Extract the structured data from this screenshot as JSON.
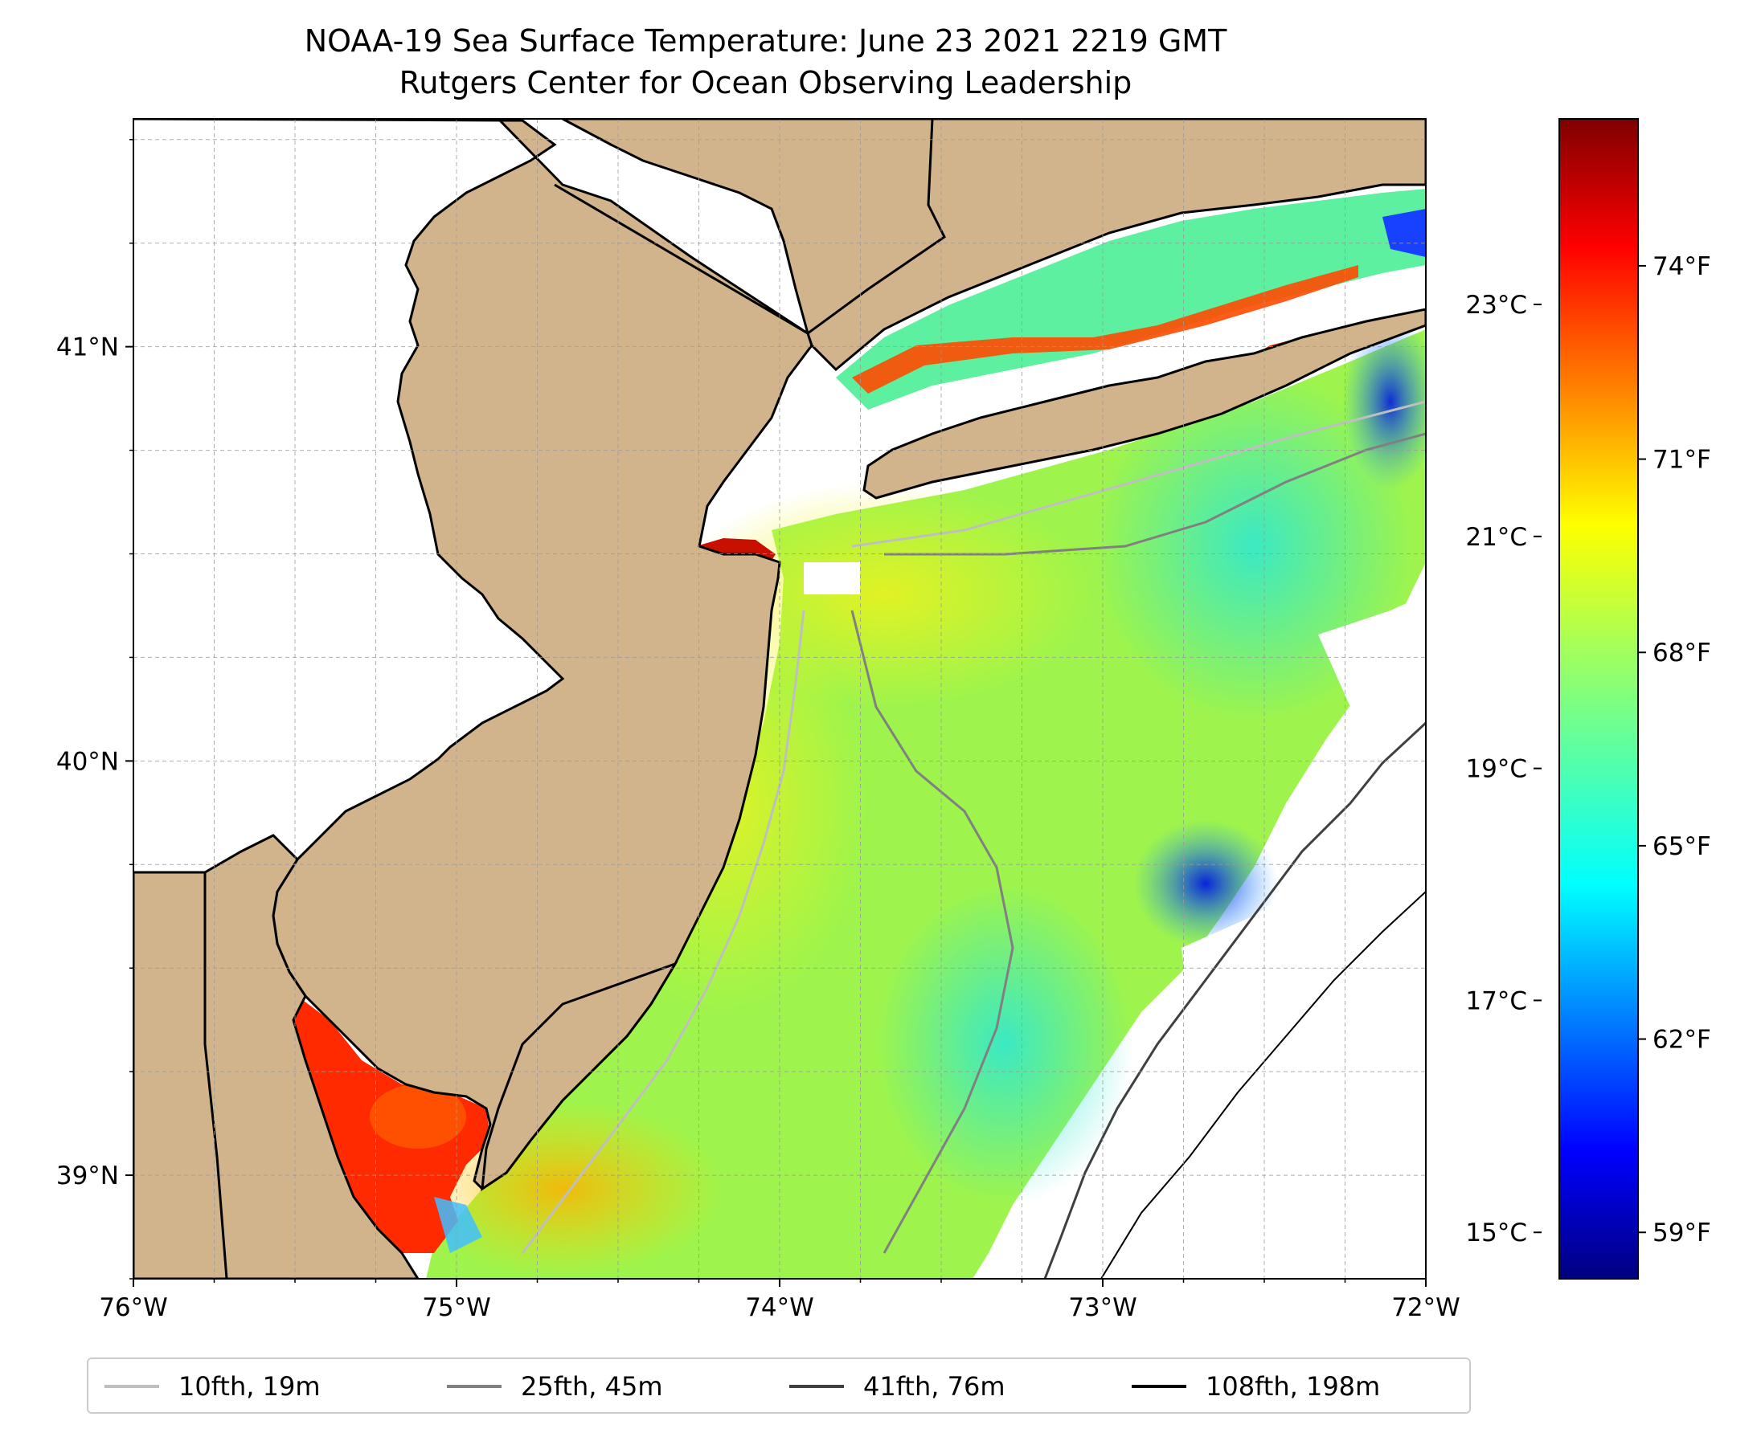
{
  "header": {
    "title": "NOAA-19 Sea Surface Temperature: June 23 2021 2219 GMT",
    "subtitle": "Rutgers Center for Ocean Observing Leadership"
  },
  "map": {
    "lon_range": [
      -76,
      -72
    ],
    "lat_range": [
      38.75,
      41.55
    ],
    "x_ticks": [
      {
        "lon": -76,
        "label": "76°W"
      },
      {
        "lon": -75,
        "label": "75°W"
      },
      {
        "lon": -74,
        "label": "74°W"
      },
      {
        "lon": -73,
        "label": "73°W"
      },
      {
        "lon": -72,
        "label": "72°W"
      }
    ],
    "y_ticks": [
      {
        "lat": 41,
        "label": "41°N"
      },
      {
        "lat": 40,
        "label": "40°N"
      },
      {
        "lat": 39,
        "label": "39°N"
      }
    ],
    "land_color": "#d2b48c",
    "gridlines": true
  },
  "colorbar": {
    "colormap": "jet",
    "range_c": [
      14.6,
      24.6
    ],
    "fahrenheit_ticks": [
      {
        "value": 74,
        "label": "74°F"
      },
      {
        "value": 71,
        "label": "71°F"
      },
      {
        "value": 68,
        "label": "68°F"
      },
      {
        "value": 65,
        "label": "65°F"
      },
      {
        "value": 62,
        "label": "62°F"
      },
      {
        "value": 59,
        "label": "59°F"
      }
    ],
    "celsius_ticks": [
      {
        "value": 23,
        "label": "23°C"
      },
      {
        "value": 21,
        "label": "21°C"
      },
      {
        "value": 19,
        "label": "19°C"
      },
      {
        "value": 17,
        "label": "17°C"
      },
      {
        "value": 15,
        "label": "15°C"
      }
    ]
  },
  "legend": {
    "items": [
      {
        "label": "10fth, 19m",
        "color": "#bfbfbf"
      },
      {
        "label": "25fth, 45m",
        "color": "#808080"
      },
      {
        "label": "41fth, 76m",
        "color": "#404040"
      },
      {
        "label": "108fth, 198m",
        "color": "#000000"
      }
    ]
  }
}
